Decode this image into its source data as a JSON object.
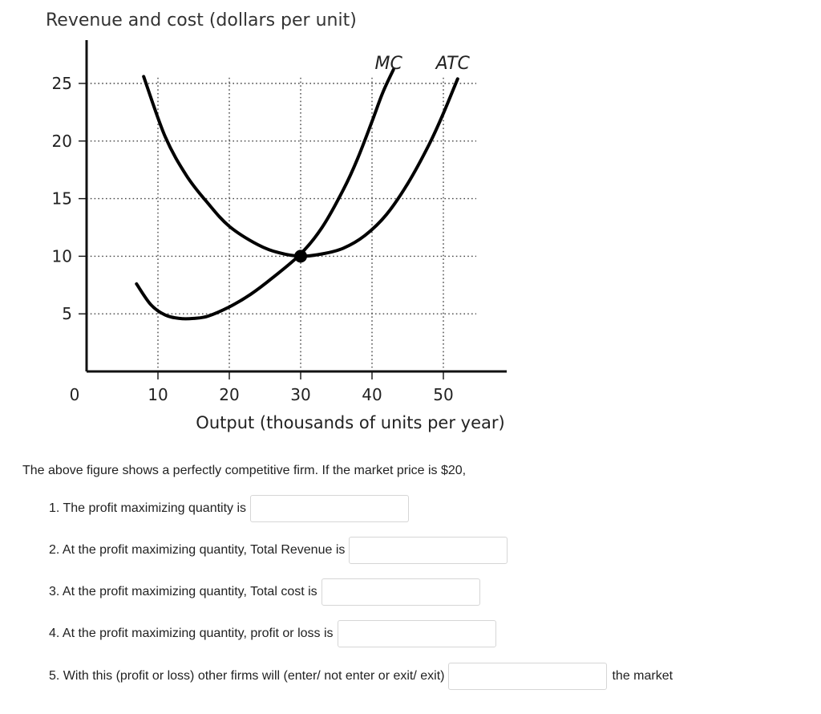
{
  "chart_data": {
    "type": "line",
    "title": "Revenue and cost (dollars per unit)",
    "xlabel": "Output (thousands of units per year)",
    "ylabel": "",
    "xlim": [
      0,
      58
    ],
    "ylim": [
      0,
      27
    ],
    "x_ticks": [
      "10",
      "20",
      "30",
      "40",
      "50"
    ],
    "x_tick_values": [
      10,
      20,
      30,
      40,
      50
    ],
    "y_ticks": [
      "25",
      "20",
      "15",
      "10",
      "5"
    ],
    "y_tick_values": [
      25,
      20,
      15,
      10,
      5
    ],
    "origin_label": "0",
    "grid": "dotted",
    "series": [
      {
        "name": "MC",
        "x": [
          7,
          9,
          11,
          13,
          15,
          17,
          20,
          23,
          26,
          30,
          33,
          36,
          38,
          40,
          41.5,
          43
        ],
        "y": [
          7.6,
          5.8,
          4.9,
          4.6,
          4.6,
          4.8,
          5.6,
          6.7,
          8.1,
          10.2,
          12.5,
          15.8,
          18.5,
          21.7,
          24.2,
          26.2
        ]
      },
      {
        "name": "ATC",
        "x": [
          8,
          11,
          14,
          17,
          20,
          24,
          27,
          30,
          33,
          36,
          39,
          42,
          45,
          48,
          50,
          52
        ],
        "y": [
          25.6,
          20.4,
          17.0,
          14.6,
          12.6,
          11.0,
          10.3,
          10.0,
          10.2,
          10.7,
          11.8,
          13.6,
          16.3,
          19.7,
          22.4,
          25.4
        ]
      }
    ],
    "intersection": {
      "x": 30,
      "y": 10
    }
  },
  "question": {
    "intro": "The above figure shows a perfectly competitive firm. If the market price is $20,",
    "items": [
      {
        "label": "1. The profit maximizing quantity is"
      },
      {
        "label": "2. At the profit maximizing quantity, Total Revenue is"
      },
      {
        "label": "3. At the profit maximizing quantity, Total cost is"
      },
      {
        "label": "4. At the profit maximizing quantity, profit or loss is"
      },
      {
        "label": "5. With this (profit or loss) other firms will (enter/ not enter or exit/ exit)",
        "suffix": "the market"
      }
    ]
  }
}
